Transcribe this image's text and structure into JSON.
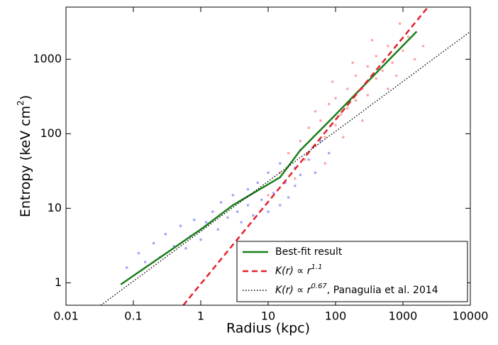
{
  "chart_data": {
    "type": "scatter",
    "xlabel": "Radius (kpc)",
    "ylabel": {
      "text": "Entropy (keV cm",
      "sup": "2",
      "end": ")"
    },
    "xlim": [
      0.01,
      10000
    ],
    "xticks": [
      0.01,
      0.1,
      1,
      10,
      100,
      1000,
      10000
    ],
    "xlog": true,
    "ylim": [
      0.5,
      5000
    ],
    "yticks": [
      1,
      10,
      100,
      1000
    ],
    "ylog": true,
    "legend": "lower right",
    "series": [
      {
        "mode": "scatter",
        "color": "#5a5aff",
        "x": [
          0.08,
          0.12,
          0.15,
          0.2,
          0.25,
          0.3,
          0.4,
          0.5,
          0.6,
          0.7,
          0.8,
          1,
          1.2,
          1.5,
          1.8,
          2,
          2.5,
          3,
          3.5,
          4,
          5,
          5,
          6,
          7,
          8,
          10,
          10,
          12,
          15,
          15,
          18,
          20,
          25,
          25,
          30,
          30,
          40,
          50,
          60,
          80
        ],
        "values": [
          1.6,
          2.5,
          1.9,
          3.4,
          2.2,
          4.5,
          3.1,
          5.8,
          2.9,
          4.2,
          7,
          3.8,
          6.5,
          9,
          5.2,
          12,
          7.5,
          15,
          9,
          6.5,
          18,
          11,
          8,
          22,
          13,
          9,
          30,
          16,
          11,
          40,
          22,
          14,
          35,
          20,
          60,
          28,
          45,
          30,
          80,
          55
        ]
      },
      {
        "mode": "scatter",
        "color": "#ff5a5a",
        "x": [
          10,
          15,
          20,
          25,
          30,
          35,
          40,
          50,
          60,
          70,
          80,
          100,
          100,
          120,
          150,
          150,
          200,
          200,
          250,
          300,
          300,
          400,
          400,
          500,
          600,
          700,
          800,
          1000,
          1200,
          1500,
          50,
          70,
          90,
          130,
          180,
          250,
          350,
          600,
          900,
          2000
        ],
        "values": [
          15,
          30,
          55,
          25,
          80,
          45,
          120,
          70,
          150,
          90,
          250,
          130,
          300,
          180,
          400,
          220,
          280,
          600,
          400,
          800,
          330,
          550,
          1100,
          700,
          1500,
          900,
          600,
          1300,
          2000,
          1000,
          200,
          40,
          500,
          90,
          900,
          150,
          1800,
          400,
          3000,
          1500
        ]
      },
      {
        "mode": "line",
        "name": "Best-fit result",
        "color": "#1a7f1a",
        "dash": "solid",
        "x": [
          0.065,
          1,
          3,
          15,
          30,
          100,
          300,
          1600
        ],
        "values": [
          0.95,
          5.2,
          11,
          26,
          60,
          180,
          500,
          2350
        ]
      },
      {
        "mode": "line",
        "name": "K(r) ∝ r",
        "name_sup": "1.1",
        "color": "#e3212b",
        "dash": "dashed",
        "x": [
          0.55,
          2350
        ],
        "values": [
          0.5,
          5000
        ]
      },
      {
        "mode": "line",
        "name": "K(r) ∝ r",
        "name_sup": "0.67",
        "name_suffix": ", Panagulia et al. 2014",
        "color": "#000000",
        "dash": "dotted",
        "x": [
          0.033,
          10000
        ],
        "values": [
          0.5,
          2350
        ]
      }
    ]
  }
}
